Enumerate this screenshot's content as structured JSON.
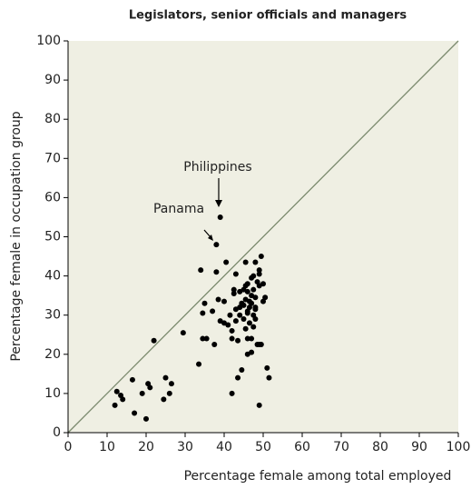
{
  "chart_data": {
    "type": "scatter",
    "title": "Legislators, senior officials and managers",
    "x_label": "Percentage female among total employed",
    "y_label": "Percentage female in occupation group",
    "annotations": [
      "Philippines",
      "Panama"
    ],
    "xlim": [
      0,
      100
    ],
    "ylim": [
      0,
      100
    ],
    "xticks": [
      0,
      10,
      20,
      30,
      40,
      50,
      60,
      70,
      80,
      90,
      100
    ],
    "yticks": [
      0,
      10,
      20,
      30,
      40,
      50,
      60,
      70,
      80,
      90,
      100
    ],
    "color": "#000000",
    "series": [
      {
        "x": [
          12,
          12.5,
          13.5,
          14,
          16.5,
          17,
          19,
          20,
          20.5,
          21,
          22,
          24.5,
          25,
          26,
          26.5,
          29.5,
          33.5,
          34,
          34.5,
          34.5,
          35,
          35.5,
          37,
          37.5,
          38,
          38,
          39,
          38.5,
          39,
          40,
          40,
          40.5,
          41,
          42,
          42,
          42,
          42.5,
          42.5,
          43,
          43,
          43,
          43.5,
          43.5,
          44,
          44,
          44.5,
          44.5,
          45,
          45,
          45,
          45.5,
          45.5,
          45.5,
          46,
          46,
          46,
          46,
          46,
          46,
          46.5,
          46.5,
          47,
          47,
          47,
          47,
          47,
          47.5,
          47.5,
          47.5,
          47.5,
          48,
          48,
          48,
          48.5,
          48.5,
          49,
          49,
          49,
          49,
          49,
          49.5,
          49.5,
          50,
          50,
          50.5,
          51,
          51.5,
          48,
          48,
          44,
          46.5,
          41.5,
          45.5
        ],
        "y": [
          7,
          10.5,
          9.5,
          8.5,
          13.5,
          5,
          10,
          3.5,
          12.5,
          11.5,
          23.5,
          8.5,
          14,
          10,
          12.5,
          25.5,
          17.5,
          41.5,
          24,
          30.5,
          33,
          24,
          31,
          22.5,
          41,
          48,
          55,
          34,
          28.5,
          33.5,
          28,
          43.5,
          27.5,
          26,
          24,
          10,
          35.5,
          36.5,
          40.5,
          31.5,
          28.5,
          14,
          23.5,
          36,
          30,
          16,
          33,
          29,
          36.5,
          32.5,
          43.5,
          37.5,
          26.5,
          31,
          20,
          24,
          30.5,
          36,
          38,
          28,
          32,
          20.5,
          33,
          39.5,
          35,
          24,
          40,
          30,
          36.5,
          27,
          43.5,
          31.5,
          32,
          22.5,
          38.5,
          41.5,
          37.5,
          40.5,
          22.5,
          7,
          45,
          22.5,
          33.5,
          38,
          34.5,
          16.5,
          14,
          29,
          34.5,
          32,
          33.5,
          30,
          34
        ]
      }
    ]
  }
}
